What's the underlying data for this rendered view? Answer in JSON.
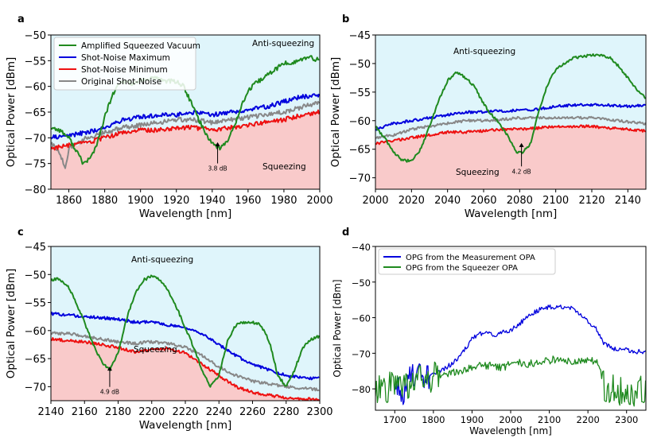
{
  "chart_data": [
    {
      "panel": "a",
      "type": "line",
      "title": "",
      "xlabel": "Wavelength [nm]",
      "ylabel": "Optical Power [dBm]",
      "xlim": [
        1850,
        2000
      ],
      "ylim": [
        -80,
        -50
      ],
      "xticks": [
        1860,
        1880,
        1900,
        1920,
        1940,
        1960,
        1980,
        2000
      ],
      "yticks": [
        -80,
        -75,
        -70,
        -65,
        -60,
        -55,
        -50
      ],
      "legend": {
        "placement": "top-left",
        "entries": [
          "Amplified Squeezed Vacuum",
          "Shot-Noise Maximum",
          "Shot-Noise Minimum",
          "Original Shot-Noise"
        ]
      },
      "regions": {
        "upper_label": "Anti-squeezing",
        "lower_label": "Squeezing",
        "upper_color": "#dff5fb",
        "lower_color": "#f9caca"
      },
      "annotation": {
        "text": "3.8 dB",
        "x": 1943,
        "y_from": -72.2,
        "y_to": -70.4
      },
      "series": [
        {
          "name": "Amplified Squeezed Vacuum",
          "color": "#1f8a1f",
          "x": [
            1850,
            1855,
            1860,
            1865,
            1868,
            1872,
            1876,
            1880,
            1884,
            1888,
            1892,
            1896,
            1900,
            1905,
            1910,
            1915,
            1920,
            1924,
            1928,
            1932,
            1936,
            1940,
            1944,
            1948,
            1952,
            1956,
            1960,
            1964,
            1968,
            1972,
            1976,
            1980,
            1984,
            1988,
            1992,
            1996,
            2000
          ],
          "values": [
            -68,
            -68.5,
            -70,
            -73,
            -75,
            -74,
            -71,
            -66,
            -62,
            -59.5,
            -59,
            -59.5,
            -59,
            -58.5,
            -58.5,
            -59,
            -59,
            -60,
            -63,
            -66,
            -69,
            -71,
            -72,
            -71,
            -68,
            -64,
            -61,
            -59.5,
            -58.5,
            -57.5,
            -56.5,
            -55.5,
            -55.5,
            -55,
            -54.5,
            -54.5,
            -55
          ]
        },
        {
          "name": "Shot-Noise Maximum",
          "color": "#0000dd",
          "x": [
            1850,
            1860,
            1870,
            1880,
            1890,
            1900,
            1910,
            1920,
            1930,
            1940,
            1950,
            1960,
            1970,
            1980,
            1990,
            2000
          ],
          "values": [
            -70,
            -69.5,
            -69,
            -68,
            -66.5,
            -66,
            -65.5,
            -65.5,
            -65,
            -65.5,
            -65,
            -64.5,
            -64,
            -63,
            -62,
            -61.8
          ]
        },
        {
          "name": "Shot-Noise Minimum",
          "color": "#ee1111",
          "x": [
            1850,
            1860,
            1870,
            1880,
            1890,
            1900,
            1910,
            1920,
            1930,
            1940,
            1950,
            1960,
            1970,
            1980,
            1990,
            2000
          ],
          "values": [
            -72,
            -71.5,
            -71,
            -70,
            -69,
            -68.5,
            -68.5,
            -68,
            -68,
            -68.5,
            -68,
            -67.5,
            -67,
            -66.5,
            -65.5,
            -65
          ]
        },
        {
          "name": "Original Shot-Noise",
          "color": "#888888",
          "x": [
            1850,
            1855,
            1858,
            1860,
            1865,
            1870,
            1880,
            1890,
            1900,
            1910,
            1920,
            1930,
            1940,
            1950,
            1960,
            1970,
            1980,
            1990,
            2000
          ],
          "values": [
            -71,
            -73,
            -76,
            -72,
            -71,
            -70,
            -69,
            -68,
            -67.5,
            -67,
            -66.5,
            -66.5,
            -67,
            -66.5,
            -66,
            -65.5,
            -65,
            -64,
            -63
          ]
        }
      ]
    },
    {
      "panel": "b",
      "type": "line",
      "title": "",
      "xlabel": "Wavelength [nm]",
      "ylabel": "Optical Power [dBm]",
      "xlim": [
        2000,
        2150
      ],
      "ylim": [
        -72,
        -45
      ],
      "xticks": [
        2000,
        2020,
        2040,
        2060,
        2080,
        2100,
        2120,
        2140
      ],
      "yticks": [
        -70,
        -65,
        -60,
        -55,
        -50,
        -45
      ],
      "regions": {
        "upper_label": "Anti-squeezing",
        "lower_label": "Squeezing",
        "upper_color": "#dff5fb",
        "lower_color": "#f9caca"
      },
      "annotation": {
        "text": "4.2 dB",
        "x": 2081,
        "y_from": -65.5,
        "y_to": -63.5
      },
      "series": [
        {
          "name": "Amplified Squeezed Vacuum",
          "color": "#1f8a1f",
          "x": [
            2000,
            2005,
            2010,
            2015,
            2020,
            2025,
            2030,
            2035,
            2040,
            2045,
            2050,
            2055,
            2058,
            2062,
            2066,
            2070,
            2074,
            2078,
            2082,
            2086,
            2090,
            2095,
            2100,
            2105,
            2110,
            2115,
            2120,
            2125,
            2130,
            2135,
            2140,
            2145,
            2150
          ],
          "values": [
            -61,
            -63,
            -65.5,
            -67,
            -67,
            -65,
            -61,
            -56.5,
            -53,
            -51.5,
            -52.5,
            -54,
            -56,
            -58,
            -59.5,
            -61,
            -63,
            -65.5,
            -65.5,
            -64,
            -59,
            -54,
            -51,
            -50,
            -49,
            -48.8,
            -48.5,
            -48.5,
            -49,
            -50.5,
            -52.5,
            -54.5,
            -56
          ]
        },
        {
          "name": "Shot-Noise Maximum",
          "color": "#0000dd",
          "x": [
            2000,
            2010,
            2020,
            2030,
            2040,
            2050,
            2060,
            2070,
            2080,
            2090,
            2100,
            2110,
            2120,
            2130,
            2140,
            2150
          ],
          "values": [
            -61.5,
            -60.5,
            -60,
            -59.5,
            -59,
            -58.5,
            -58.5,
            -58.3,
            -58.2,
            -58,
            -57.5,
            -57.3,
            -57.2,
            -57.3,
            -57.5,
            -57.3
          ]
        },
        {
          "name": "Shot-Noise Minimum",
          "color": "#ee1111",
          "x": [
            2000,
            2010,
            2020,
            2030,
            2040,
            2050,
            2060,
            2070,
            2080,
            2090,
            2100,
            2110,
            2120,
            2130,
            2140,
            2150
          ],
          "values": [
            -64,
            -63.5,
            -63,
            -62.5,
            -62,
            -62,
            -61.8,
            -61.5,
            -61.5,
            -61.3,
            -61,
            -61,
            -61,
            -61.3,
            -61.5,
            -61.8
          ]
        },
        {
          "name": "Original Shot-Noise",
          "color": "#888888",
          "x": [
            2000,
            2010,
            2020,
            2030,
            2040,
            2050,
            2060,
            2070,
            2080,
            2090,
            2100,
            2110,
            2120,
            2130,
            2140,
            2150
          ],
          "values": [
            -63,
            -62.5,
            -61.5,
            -61,
            -60.5,
            -60,
            -60,
            -59.8,
            -59.5,
            -59.5,
            -59.5,
            -59.5,
            -59.5,
            -59.8,
            -60.2,
            -60.5
          ]
        }
      ]
    },
    {
      "panel": "c",
      "type": "line",
      "title": "",
      "xlabel": "Wavelength [nm]",
      "ylabel": "Optical Power [dBm]",
      "xlim": [
        2140,
        2300
      ],
      "ylim": [
        -72.5,
        -45
      ],
      "xticks": [
        2140,
        2160,
        2180,
        2200,
        2220,
        2240,
        2260,
        2280,
        2300
      ],
      "yticks": [
        -70,
        -65,
        -60,
        -55,
        -50,
        -45
      ],
      "regions": {
        "upper_label": "Anti-squeezing",
        "lower_label": "Squeezing",
        "upper_color": "#dff5fb",
        "lower_color": "#f9caca"
      },
      "annotation": {
        "text": "4.9 dB",
        "x": 2175,
        "y_from": -67.5,
        "y_to": -66
      },
      "series": [
        {
          "name": "Amplified Squeezed Vacuum",
          "color": "#1f8a1f",
          "x": [
            2140,
            2145,
            2150,
            2155,
            2160,
            2165,
            2170,
            2175,
            2180,
            2185,
            2190,
            2195,
            2200,
            2205,
            2210,
            2215,
            2220,
            2225,
            2230,
            2235,
            2240,
            2245,
            2250,
            2255,
            2260,
            2265,
            2270,
            2275,
            2280,
            2285,
            2290,
            2295,
            2300
          ],
          "values": [
            -51,
            -50.8,
            -52,
            -55,
            -58.5,
            -62.5,
            -65.5,
            -67,
            -64,
            -58,
            -53.5,
            -51,
            -50.3,
            -51,
            -53,
            -56,
            -59.5,
            -63,
            -67,
            -70,
            -68,
            -62,
            -59,
            -58.5,
            -58.5,
            -59,
            -62,
            -68,
            -70,
            -67,
            -63,
            -61.5,
            -61
          ]
        },
        {
          "name": "Shot-Noise Maximum",
          "color": "#0000dd",
          "x": [
            2140,
            2150,
            2160,
            2170,
            2180,
            2190,
            2200,
            2210,
            2220,
            2230,
            2240,
            2250,
            2260,
            2270,
            2280,
            2290,
            2300
          ],
          "values": [
            -57,
            -57.2,
            -57.5,
            -57.7,
            -58,
            -58.5,
            -58.5,
            -59,
            -59.5,
            -60.5,
            -62.5,
            -64.5,
            -66,
            -67,
            -68,
            -68.5,
            -68.5
          ]
        },
        {
          "name": "Shot-Noise Minimum",
          "color": "#ee1111",
          "x": [
            2140,
            2150,
            2160,
            2170,
            2180,
            2190,
            2200,
            2210,
            2220,
            2230,
            2240,
            2250,
            2260,
            2270,
            2280,
            2290,
            2300
          ],
          "values": [
            -61.5,
            -61.8,
            -62,
            -62.5,
            -63,
            -63.8,
            -63.5,
            -63.2,
            -64,
            -66,
            -68,
            -70,
            -71,
            -71.5,
            -72,
            -72.2,
            -72.3
          ]
        },
        {
          "name": "Original Shot-Noise",
          "color": "#888888",
          "x": [
            2140,
            2150,
            2160,
            2170,
            2180,
            2190,
            2200,
            2210,
            2220,
            2230,
            2240,
            2250,
            2260,
            2270,
            2280,
            2290,
            2300
          ],
          "values": [
            -60.5,
            -60.5,
            -61,
            -61.5,
            -62,
            -62.3,
            -62,
            -62.3,
            -63,
            -64.5,
            -66.5,
            -68,
            -69,
            -69.5,
            -70,
            -70.3,
            -70.5
          ]
        }
      ]
    },
    {
      "panel": "d",
      "type": "line",
      "title": "",
      "xlabel": "Wavelength [nm]",
      "ylabel": "Optical Power [dBm]",
      "xlim": [
        1650,
        2350
      ],
      "ylim": [
        -86,
        -40
      ],
      "xticks": [
        1700,
        1800,
        1900,
        2000,
        2100,
        2200,
        2300
      ],
      "yticks": [
        -80,
        -70,
        -60,
        -50,
        -40
      ],
      "legend": {
        "placement": "top-left",
        "entries": [
          "OPG from the Measurement OPA",
          "OPG from the Squeezer OPA"
        ]
      },
      "series": [
        {
          "name": "OPG from the Measurement OPA",
          "color": "#0000dd",
          "x": [
            1700,
            1710,
            1720,
            1730,
            1740,
            1760,
            1780,
            1800,
            1820,
            1840,
            1860,
            1880,
            1900,
            1920,
            1940,
            1960,
            1980,
            2000,
            2020,
            2040,
            2060,
            2080,
            2100,
            2120,
            2140,
            2160,
            2180,
            2200,
            2220,
            2240,
            2260,
            2280,
            2300,
            2320,
            2340,
            2350
          ],
          "values": [
            -79,
            -80,
            -82,
            -78,
            -77,
            -77,
            -76.5,
            -76,
            -75,
            -73.5,
            -72,
            -69,
            -66,
            -64.5,
            -64.5,
            -65,
            -64,
            -63.5,
            -62,
            -60,
            -58.5,
            -57.5,
            -57,
            -57,
            -57,
            -57.5,
            -59,
            -61,
            -63,
            -67,
            -68.5,
            -69,
            -69,
            -69.5,
            -69.5,
            -69.5
          ]
        },
        {
          "name": "OPG from the Squeezer OPA",
          "color": "#1f8a1f",
          "x": [
            1650,
            1700,
            1750,
            1800,
            1820,
            1850,
            1880,
            1900,
            1920,
            1950,
            1980,
            2000,
            2020,
            2050,
            2080,
            2100,
            2120,
            2150,
            2180,
            2200,
            2220,
            2230,
            2240,
            2260,
            2300,
            2350
          ],
          "values": [
            -81,
            -79,
            -78,
            -77,
            -76,
            -75.5,
            -75,
            -74,
            -73.5,
            -73.5,
            -74,
            -73,
            -72.5,
            -73,
            -72.5,
            -72,
            -71.5,
            -72,
            -72.5,
            -72,
            -72.5,
            -73,
            -79,
            -80,
            -80.5,
            -81
          ]
        }
      ]
    }
  ],
  "panels": {
    "a": {
      "label": "a"
    },
    "b": {
      "label": "b"
    },
    "c": {
      "label": "c"
    },
    "d": {
      "label": "d"
    }
  }
}
